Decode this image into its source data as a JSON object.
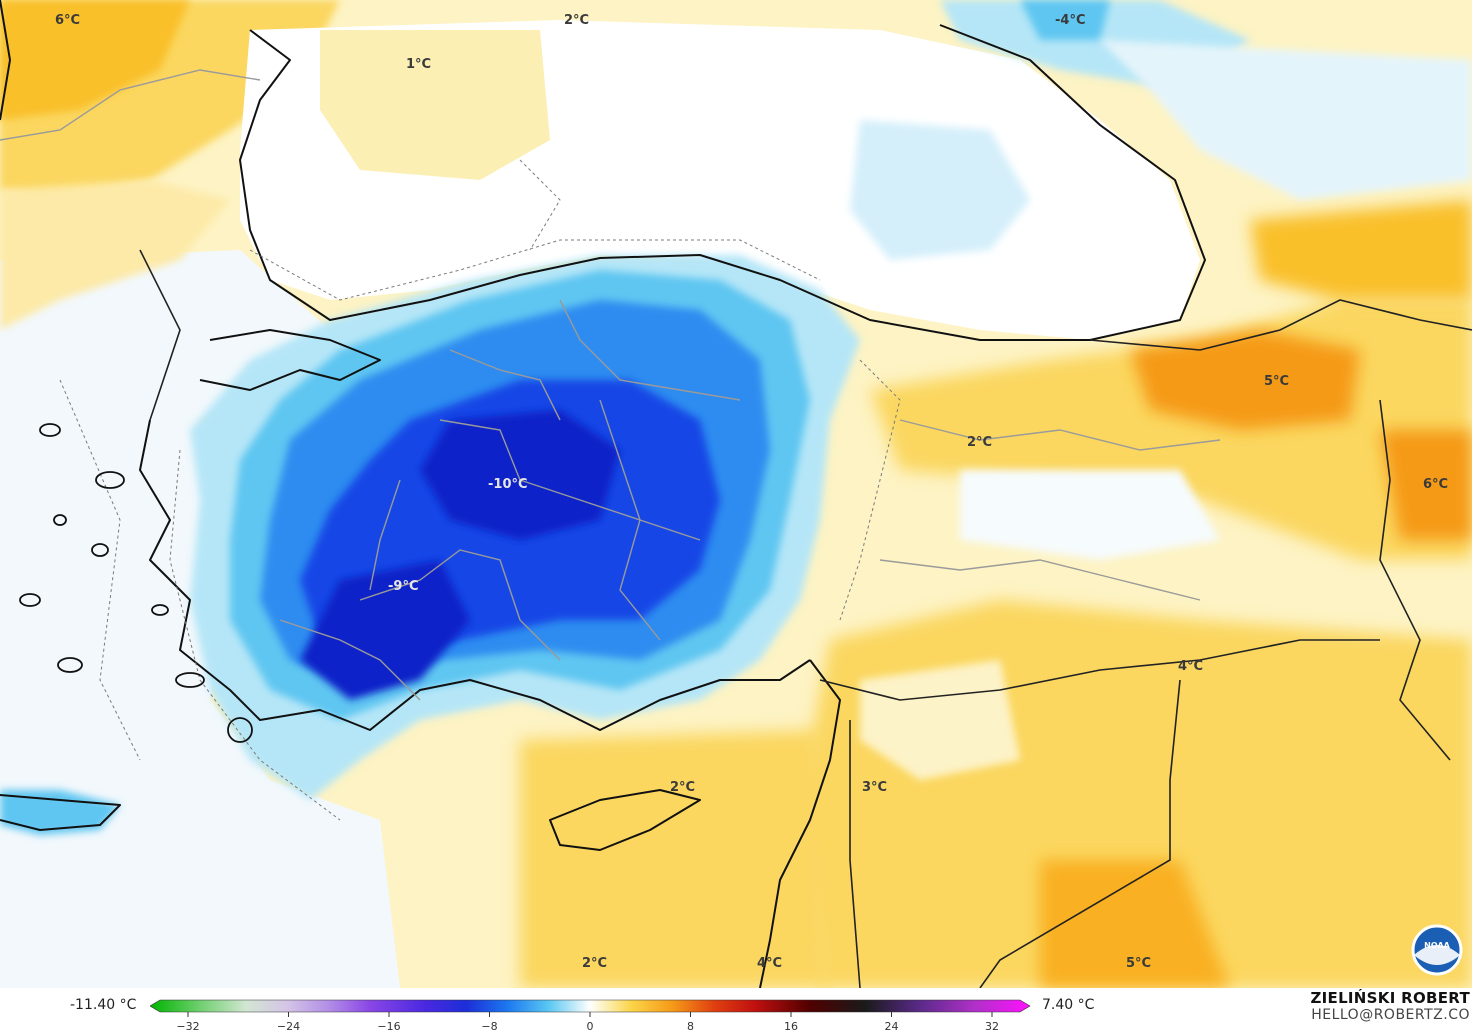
{
  "map": {
    "labels": [
      {
        "text": "6°C",
        "id": "label-6c-nw"
      },
      {
        "text": "2°C",
        "id": "label-2c-north"
      },
      {
        "text": "-4°C",
        "id": "label-minus4c-ne"
      },
      {
        "text": "1°C",
        "id": "label-1c-blacksea"
      },
      {
        "text": "-10°C",
        "id": "label-minus10c-center"
      },
      {
        "text": "-9°C",
        "id": "label-minus9c-sw"
      },
      {
        "text": "5°C",
        "id": "label-5c-east"
      },
      {
        "text": "2°C",
        "id": "label-2c-east"
      },
      {
        "text": "6°C",
        "id": "label-6c-east"
      },
      {
        "text": "4°C",
        "id": "label-4c-syria"
      },
      {
        "text": "2°C",
        "id": "label-2c-cyprus"
      },
      {
        "text": "3°C",
        "id": "label-3c-levant"
      },
      {
        "text": "2°C",
        "id": "label-2c-south"
      },
      {
        "text": "4°C",
        "id": "label-4c-south"
      },
      {
        "text": "5°C",
        "id": "label-5c-south"
      }
    ],
    "colors": {
      "sea_neutral": "#ffffff",
      "very_light_blue": "#e9f6fc",
      "light_blue": "#b5e6f7",
      "mid_blue": "#5fc6f1",
      "blue": "#2f8cf0",
      "deep_blue": "#1846e6",
      "darkest_blue": "#0c22c8",
      "pale_yellow": "#fcefb4",
      "yellow": "#fbd760",
      "gold": "#f9c02c",
      "orange": "#f59a18",
      "deep_orange": "#ef7d0c"
    },
    "logo": "noaa-logo"
  },
  "legend": {
    "min_label": "-11.40 °C",
    "max_label": "7.40 °C",
    "ticks": [
      "−32",
      "−24",
      "−16",
      "−8",
      "0",
      "8",
      "16",
      "24",
      "32"
    ],
    "scale_min": -32,
    "scale_max": 32,
    "gradient_stops": [
      {
        "value": -32,
        "color": "#00b400"
      },
      {
        "value": -28,
        "color": "#7ad27a"
      },
      {
        "value": -25,
        "color": "#d2e6d2"
      },
      {
        "value": -22,
        "color": "#d4c4e6"
      },
      {
        "value": -19,
        "color": "#b28ee6"
      },
      {
        "value": -16,
        "color": "#8a46e6"
      },
      {
        "value": -12,
        "color": "#4a28e0"
      },
      {
        "value": -9,
        "color": "#1c2ed8"
      },
      {
        "value": -6,
        "color": "#1c78f0"
      },
      {
        "value": -3,
        "color": "#5ac8f2"
      },
      {
        "value": -1,
        "color": "#c8ecfa"
      },
      {
        "value": 0,
        "color": "#ffffff"
      },
      {
        "value": 1,
        "color": "#fcf2c0"
      },
      {
        "value": 3,
        "color": "#fbd448"
      },
      {
        "value": 6,
        "color": "#f59a18"
      },
      {
        "value": 9,
        "color": "#e04010"
      },
      {
        "value": 12,
        "color": "#c01010"
      },
      {
        "value": 16,
        "color": "#500000"
      },
      {
        "value": 20,
        "color": "#1a1a1a"
      },
      {
        "value": 24,
        "color": "#5a2a8a"
      },
      {
        "value": 28,
        "color": "#b030c8"
      },
      {
        "value": 32,
        "color": "#ff10ff"
      }
    ]
  },
  "credit": {
    "name": "ZIELIŃSKI ROBERT",
    "email": "HELLO@ROBERTZ.CO"
  }
}
